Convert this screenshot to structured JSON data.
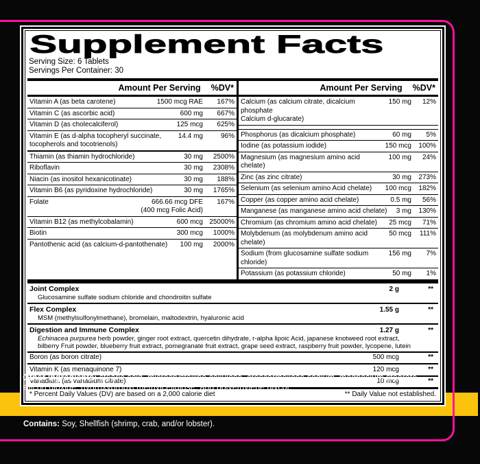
{
  "colors": {
    "accent_pink": "#ff11a0",
    "accent_yellow": "#fcc30d",
    "background": "#070707"
  },
  "panel": {
    "title": "Supplement Facts",
    "serving_size": "Serving Size: 6 Tablets",
    "servings_per_container": "Servings Per Container: 30",
    "amount_header": "Amount Per Serving",
    "dv_header": "%DV*",
    "left_rows": [
      {
        "name": "Vitamin A (as beta carotene)",
        "amount": "1500 mcg RAE",
        "dv": "167%"
      },
      {
        "name": "Vitamin C (as ascorbic acid)",
        "amount": "600 mg",
        "dv": "667%"
      },
      {
        "name": "Vitamin D (as cholecalciferol)",
        "amount": "125 mcg",
        "dv": "625%"
      },
      {
        "name": "Vitamin E (as d-alpha tocopheryl succinate,",
        "name2": "tocopherols and tocotrienols)",
        "amount": "14.4 mg",
        "dv": "96%"
      },
      {
        "name": "Thiamin (as thiamin hydrochloride)",
        "amount": "30 mg",
        "dv": "2500%"
      },
      {
        "name": "Riboflavin",
        "amount": "30 mg",
        "dv": "2308%"
      },
      {
        "name": "Niacin (as inositol hexanicotinate)",
        "amount": "30 mg",
        "dv": "188%"
      },
      {
        "name": "Vitamin B6 (as pyridoxine hydrochloride)",
        "amount": "30 mg",
        "dv": "1765%"
      },
      {
        "name": "Folate",
        "amount": "666.66 mcg DFE",
        "amount2": "(400 mcg Folic Acid)",
        "dv": "167%"
      },
      {
        "name": "Vitamin B12 (as methylcobalamin)",
        "amount": "600 mcg",
        "dv": "25000%"
      },
      {
        "name": "Biotin",
        "amount": "300 mcg",
        "dv": "1000%"
      },
      {
        "name": "Pantothenic acid (as calcium-d-pantothenate)",
        "amount": "100 mg",
        "dv": "2000%"
      }
    ],
    "right_rows": [
      {
        "name": "Calcium (as calcium citrate, dicalcium phosphate",
        "name2": "Calcium d-glucarate)",
        "amount": "150 mg",
        "dv": "12%"
      },
      {
        "name": "Phosphorus (as dicalcium phosphate)",
        "amount": "60 mg",
        "dv": "5%"
      },
      {
        "name": "Iodine (as potassium iodide)",
        "amount": "150 mcg",
        "dv": "100%"
      },
      {
        "name": "Magnesium (as magnesium amino acid chelate)",
        "amount": "100 mg",
        "dv": "24%"
      },
      {
        "name": "Zinc (as zinc citrate)",
        "amount": "30 mg",
        "dv": "273%"
      },
      {
        "name": "Selenium (as selenium amino Acid chelate)",
        "amount": "100 mcg",
        "dv": "182%"
      },
      {
        "name": "Copper (as copper amino acid chelate)",
        "amount": "0.5 mg",
        "dv": "56%"
      },
      {
        "name": "Manganese (as manganese amino acid chelate)",
        "amount": "3 mg",
        "dv": "130%"
      },
      {
        "name": "Chromium (as chromium amino acid chelate)",
        "amount": "25 mcg",
        "dv": "71%"
      },
      {
        "name": "Molybdenum (as molybdenum amino acid chelate)",
        "amount": "50 mcg",
        "dv": "111%"
      },
      {
        "name": "Sodium (from glucosamine sulfate sodium chloride)",
        "amount": "156 mg",
        "dv": "7%"
      },
      {
        "name": "Potassium (as potassium chloride)",
        "amount": "50 mg",
        "dv": "1%"
      }
    ],
    "complexes": [
      {
        "name": "Joint Complex",
        "amount": "2 g",
        "dv": "**",
        "ingredients": "Glucosamine sulfate sodium chloride and chondroitin sulfate"
      },
      {
        "name": "Flex Complex",
        "amount": "1.55 g",
        "dv": "**",
        "ingredients": "MSM (methylsulfonylmethane), bromelain, maltodextrin, hyaluronic acid"
      },
      {
        "name": "Digestion and Immune Complex",
        "amount": "1.27 g",
        "dv": "**",
        "ingredients_italic": "Echinacea purpurea",
        "ingredients": " herb powder, ginger root extract, quercetin dihydrate, r-alpha lipoic Acid, japanese knotweed root extract, bilberry Fruit powder, blueberry fruit extract, pomegranate fruit extract, grape seed extract, raspberry fruit powder, lycopene, lutein"
      }
    ],
    "extra_rows": [
      {
        "name": "Boron (as boron citrate)",
        "amount": "500 mcg",
        "dv": "**"
      },
      {
        "name": "Vitamin K (as menaquinone 7)",
        "amount": "120 mcg",
        "dv": "**"
      },
      {
        "name": "Vanadium (as vanadium citrate)",
        "amount": "10 mcg",
        "dv": "**"
      }
    ],
    "footnote_left": "* Percent Daily Values (DV) are based on a 2,000 calorie diet",
    "footnote_right": "** Daily Value not established."
  },
  "below": {
    "other_ingredients_label": "Other Ingredients:",
    "other_ingredients_text": " stearic acid, microcrystalline cellulose, croscarmellose sodium, magnesium stearate, silicon dioxide, hydroxypropyl methylcellulose, and polyethylene glycol.",
    "contains_label": "Contains:",
    "contains_text": " Soy, Shellfish (shrimp, crab, and/or lobster)."
  }
}
